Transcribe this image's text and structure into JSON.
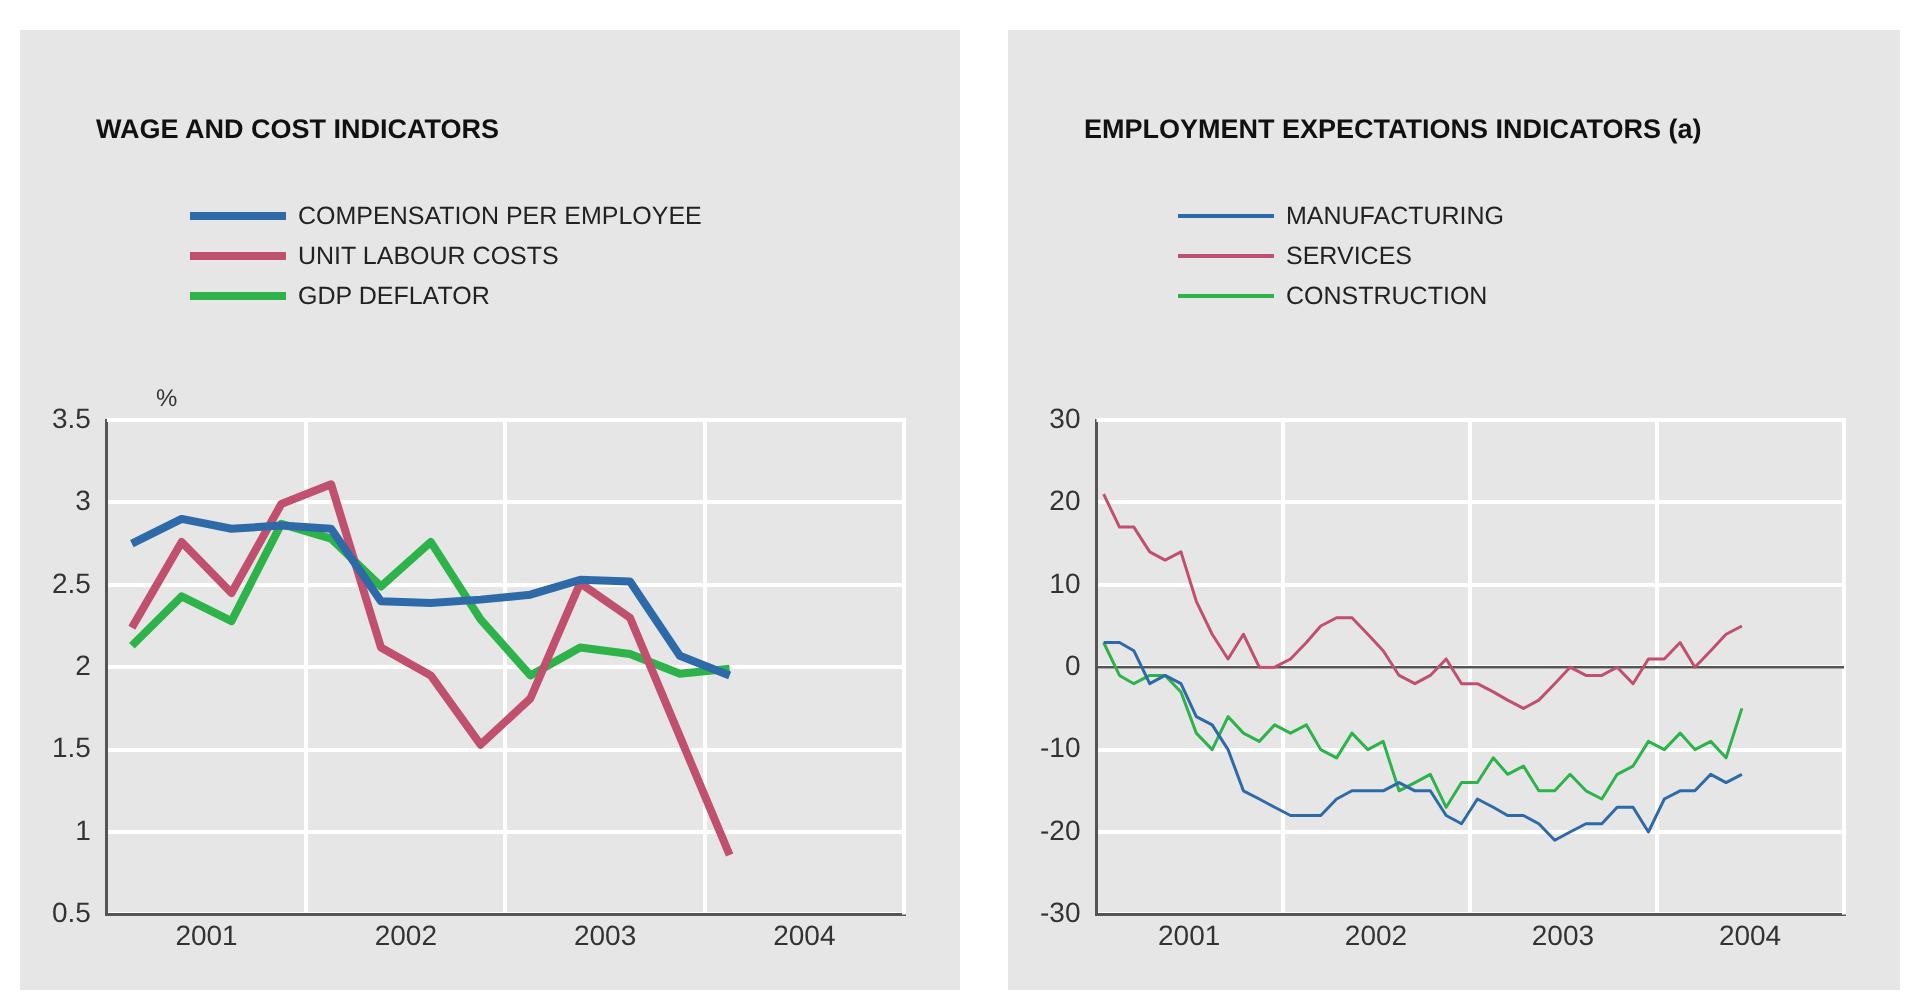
{
  "chart_data": [
    {
      "type": "line",
      "title": "WAGE AND COST INDICATORS",
      "ylabel": "%",
      "x": [
        2001.125,
        2001.375,
        2001.625,
        2001.875,
        2002.125,
        2002.375,
        2002.625,
        2002.875,
        2003.125,
        2003.375,
        2003.625,
        2003.875,
        2004.125
      ],
      "series": [
        {
          "name": "COMPENSATION PER EMPLOYEE",
          "color": "#2e6aa8",
          "values": [
            2.75,
            2.9,
            2.84,
            2.86,
            2.84,
            2.4,
            2.39,
            2.41,
            2.44,
            2.53,
            2.52,
            2.07,
            1.95
          ]
        },
        {
          "name": "UNIT LABOUR COSTS",
          "color": "#c0506e",
          "values": [
            2.24,
            2.76,
            2.45,
            2.99,
            3.11,
            2.12,
            1.95,
            1.53,
            1.81,
            2.51,
            2.3,
            1.58,
            0.86
          ]
        },
        {
          "name": "GDP DEFLATOR",
          "color": "#2db34a",
          "values": [
            2.13,
            2.43,
            2.28,
            2.87,
            2.78,
            2.49,
            2.76,
            2.29,
            1.95,
            2.12,
            2.08,
            1.96,
            1.99
          ]
        }
      ],
      "xlim": [
        2001,
        2005
      ],
      "xticks": [
        {
          "value": 2001.5,
          "label": "2001"
        },
        {
          "value": 2002,
          "label": null
        },
        {
          "value": 2002.5,
          "label": "2002"
        },
        {
          "value": 2003,
          "label": null
        },
        {
          "value": 2003.5,
          "label": "2003"
        },
        {
          "value": 2004,
          "label": null
        },
        {
          "value": 2004.5,
          "label": "2004"
        }
      ],
      "ylim": [
        0.5,
        3.5
      ],
      "yticks": [
        0.5,
        1,
        1.5,
        2,
        2.5,
        3,
        3.5
      ],
      "grid": true,
      "legend": "top left",
      "marker": "none",
      "line_style": "solid"
    },
    {
      "type": "line",
      "title": "EMPLOYMENT EXPECTATIONS INDICATORS (a)",
      "x": [
        "2001-01-15",
        "2001-02-15",
        "2001-03-15",
        "2001-04-15",
        "2001-05-15",
        "2001-06-15",
        "2001-07-15",
        "2001-08-15",
        "2001-09-15",
        "2001-10-15",
        "2001-11-15",
        "2001-12-15",
        "2002-01-15",
        "2002-02-15",
        "2002-03-15",
        "2002-04-15",
        "2002-05-15",
        "2002-06-15",
        "2002-07-15",
        "2002-08-15",
        "2002-09-15",
        "2002-10-15",
        "2002-11-15",
        "2002-12-15",
        "2003-01-15",
        "2003-02-15",
        "2003-03-15",
        "2003-04-15",
        "2003-05-15",
        "2003-06-15",
        "2003-07-15",
        "2003-08-15",
        "2003-09-15",
        "2003-10-15",
        "2003-11-15",
        "2003-12-15",
        "2004-01-15",
        "2004-02-15",
        "2004-03-15",
        "2004-04-15",
        "2004-05-15",
        "2004-06-15"
      ],
      "series": [
        {
          "name": "MANUFACTURING",
          "color": "#2e6aa8",
          "values": [
            3,
            3,
            2,
            -2,
            -1,
            -2,
            -6,
            -7,
            -10,
            -15,
            -16,
            -17,
            -18,
            -18,
            -18,
            -16,
            -15,
            -15,
            -15,
            -14,
            -15,
            -15,
            -18,
            -19,
            -16,
            -17,
            -18,
            -18,
            -19,
            -21,
            -20,
            -19,
            -19,
            -17,
            -17,
            -20,
            -16,
            -15,
            -15,
            -13,
            -14,
            -13
          ]
        },
        {
          "name": "SERVICES",
          "color": "#c0506e",
          "values": [
            21,
            17,
            17,
            14,
            13,
            14,
            8,
            4,
            1,
            4,
            0,
            0,
            1,
            3,
            5,
            6,
            6,
            4,
            2,
            -1,
            -2,
            -1,
            1,
            -2,
            -2,
            -3,
            -4,
            -5,
            -4,
            -2,
            0,
            -1,
            -1,
            0,
            -2,
            1,
            1,
            3,
            0,
            2,
            4,
            5
          ]
        },
        {
          "name": "CONSTRUCTION",
          "color": "#2db34a",
          "values": [
            3,
            -1,
            -2,
            -1,
            -1,
            -3,
            -8,
            -10,
            -6,
            -8,
            -9,
            -7,
            -8,
            -7,
            -10,
            -11,
            -8,
            -10,
            -9,
            -15,
            -14,
            -13,
            -17,
            -14,
            -14,
            -11,
            -13,
            -12,
            -15,
            -15,
            -13,
            -15,
            -16,
            -13,
            -12,
            -9,
            -10,
            -8,
            -10,
            -9,
            -11,
            -5
          ]
        }
      ],
      "xlim": [
        "2001-01-01",
        "2005-01-01"
      ],
      "xticks": [
        {
          "value": "2001-07-01",
          "label": "2001"
        },
        {
          "value": "2002-01-01",
          "label": null
        },
        {
          "value": "2002-07-01",
          "label": "2002"
        },
        {
          "value": "2003-01-01",
          "label": null
        },
        {
          "value": "2003-07-01",
          "label": "2003"
        },
        {
          "value": "2004-01-01",
          "label": null
        },
        {
          "value": "2004-07-01",
          "label": "2004"
        }
      ],
      "ylim": [
        -30,
        30
      ],
      "yticks": [
        -30,
        -20,
        -10,
        0,
        10,
        20,
        30
      ],
      "ref_lines": [
        {
          "axis": "y",
          "value": 0,
          "color": "#555555"
        }
      ],
      "grid": true,
      "legend": "top left",
      "marker": "none",
      "line_style": "solid"
    }
  ]
}
